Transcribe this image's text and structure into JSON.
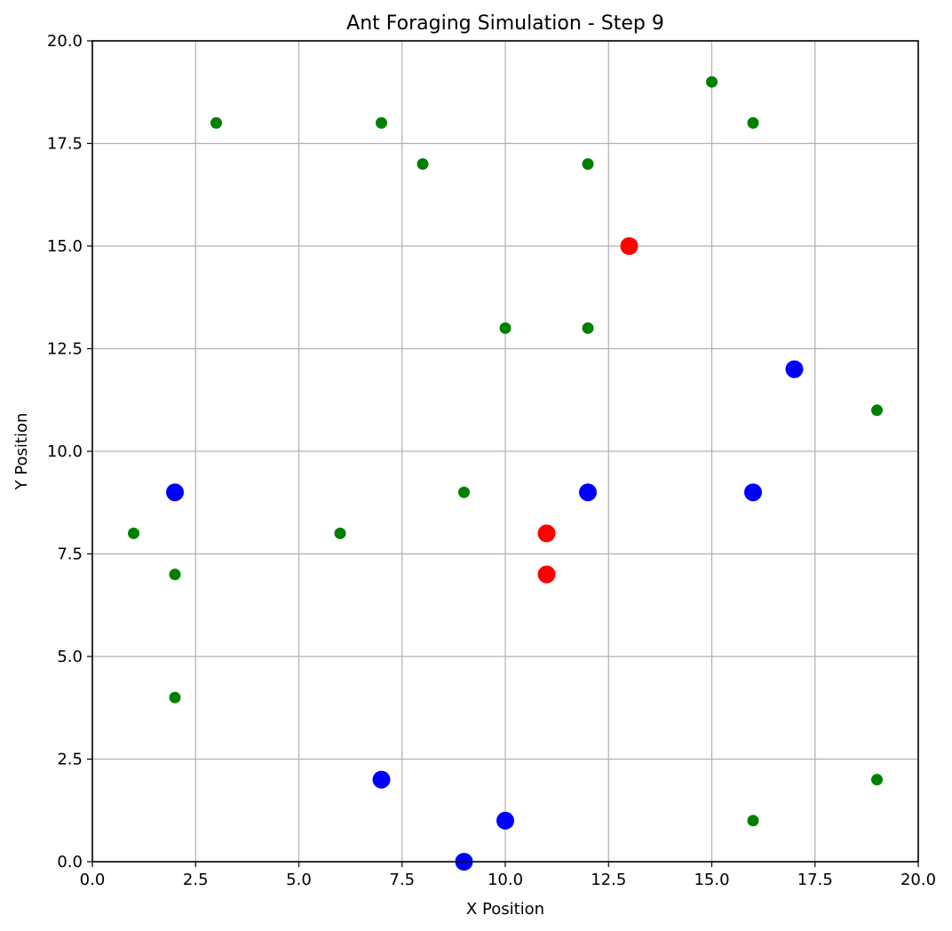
{
  "chart_data": {
    "type": "scatter",
    "title": "Ant Foraging Simulation - Step 9",
    "xlabel": "X Position",
    "ylabel": "Y Position",
    "xlim": [
      0,
      20
    ],
    "ylim": [
      0,
      20
    ],
    "xticks": [
      "0.0",
      "2.5",
      "5.0",
      "7.5",
      "10.0",
      "12.5",
      "15.0",
      "17.5",
      "20.0"
    ],
    "yticks": [
      "0.0",
      "2.5",
      "5.0",
      "7.5",
      "10.0",
      "12.5",
      "15.0",
      "17.5",
      "20.0"
    ],
    "grid": true,
    "legend": "none",
    "series": [
      {
        "color": "#008000",
        "size": "small",
        "points": [
          [
            3,
            18
          ],
          [
            7,
            18
          ],
          [
            8,
            17
          ],
          [
            12,
            17
          ],
          [
            15,
            19
          ],
          [
            16,
            18
          ],
          [
            10,
            13
          ],
          [
            12,
            13
          ],
          [
            19,
            11
          ],
          [
            9,
            9
          ],
          [
            1,
            8
          ],
          [
            6,
            8
          ],
          [
            2,
            7
          ],
          [
            2,
            4
          ],
          [
            19,
            2
          ],
          [
            16,
            1
          ]
        ]
      },
      {
        "color": "#0000ff",
        "size": "large",
        "points": [
          [
            2,
            9
          ],
          [
            12,
            9
          ],
          [
            16,
            9
          ],
          [
            17,
            12
          ],
          [
            7,
            2
          ],
          [
            10,
            1
          ],
          [
            9,
            0
          ]
        ]
      },
      {
        "color": "#ff0000",
        "size": "large",
        "points": [
          [
            13,
            15
          ],
          [
            11,
            8
          ],
          [
            11,
            7
          ]
        ]
      }
    ]
  }
}
